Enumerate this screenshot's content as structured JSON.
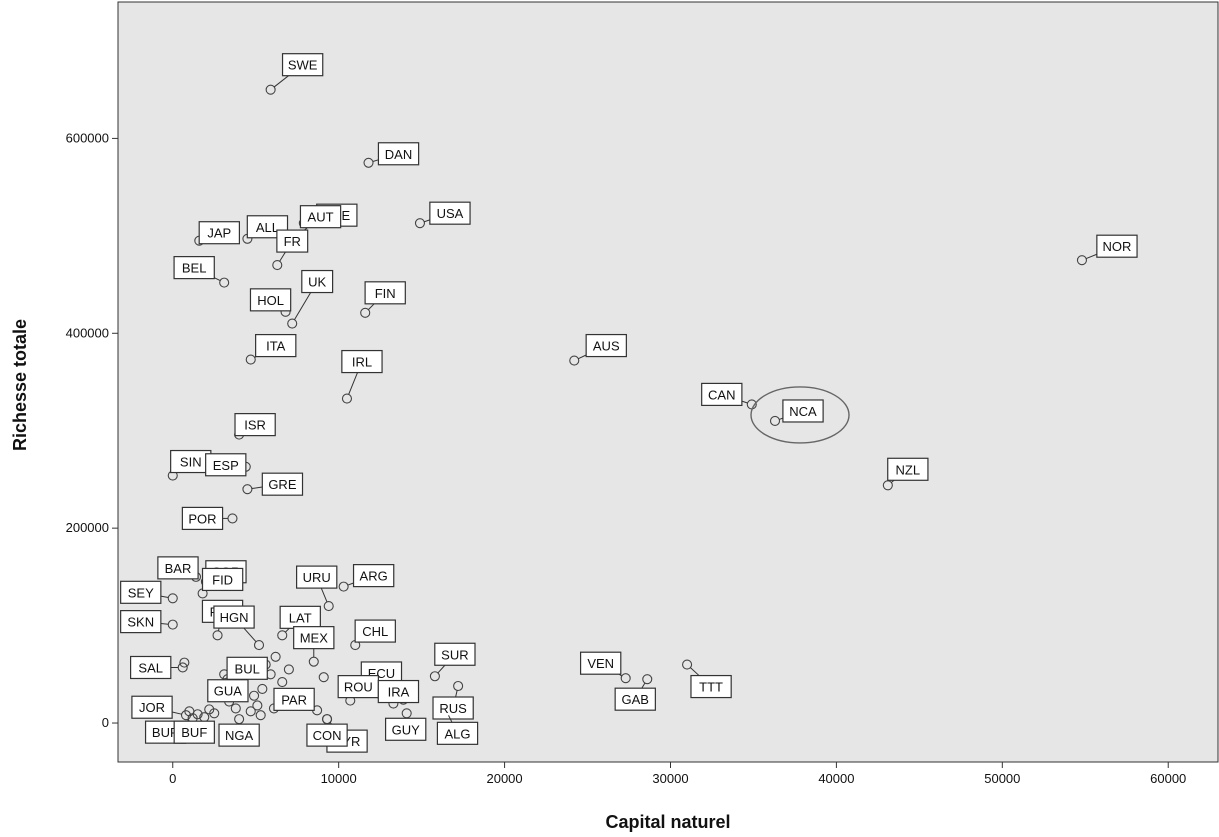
{
  "chart_data": {
    "type": "scatter",
    "xlabel": "Capital naturel",
    "ylabel": "Richesse totale",
    "xlim": [
      -3300,
      63000
    ],
    "ylim": [
      -40000,
      740000
    ],
    "x_ticks": [
      0,
      10000,
      20000,
      30000,
      40000,
      50000,
      60000
    ],
    "y_ticks": [
      0,
      200000,
      400000,
      600000
    ],
    "grid": false,
    "background": "#e6e6e6",
    "highlighted": "NCA",
    "points": [
      {
        "label": "SWE",
        "x": 5900,
        "y": 650000
      },
      {
        "label": "DAN",
        "x": 11800,
        "y": 575000
      },
      {
        "label": "SUE",
        "x": 7900,
        "y": 513000
      },
      {
        "label": "USA",
        "x": 14900,
        "y": 513000
      },
      {
        "label": "ALL",
        "x": 4500,
        "y": 497000
      },
      {
        "label": "JAP",
        "x": 1600,
        "y": 495000
      },
      {
        "label": "AUT",
        "x": 7100,
        "y": 494000
      },
      {
        "label": "NOR",
        "x": 54800,
        "y": 475000
      },
      {
        "label": "FR",
        "x": 6300,
        "y": 470000
      },
      {
        "label": "BEL",
        "x": 3100,
        "y": 452000
      },
      {
        "label": "HOL",
        "x": 6800,
        "y": 422000
      },
      {
        "label": "FIN",
        "x": 11600,
        "y": 421000
      },
      {
        "label": "UK",
        "x": 7200,
        "y": 410000
      },
      {
        "label": "ITA",
        "x": 4700,
        "y": 373000
      },
      {
        "label": "AUS",
        "x": 24200,
        "y": 372000
      },
      {
        "label": "IRL",
        "x": 10500,
        "y": 333000
      },
      {
        "label": "CAN",
        "x": 34900,
        "y": 327000
      },
      {
        "label": "NCA",
        "x": 36300,
        "y": 310000
      },
      {
        "label": "ISR",
        "x": 4000,
        "y": 296000
      },
      {
        "label": "SIN",
        "x": 0,
        "y": 254000
      },
      {
        "label": "NZL",
        "x": 43100,
        "y": 244000
      },
      {
        "label": "ESP",
        "x": 4400,
        "y": 263000
      },
      {
        "label": "GRE",
        "x": 4500,
        "y": 240000
      },
      {
        "label": "POR",
        "x": 3600,
        "y": 210000
      },
      {
        "label": "BAR",
        "x": 1400,
        "y": 150000
      },
      {
        "label": "COR",
        "x": 2000,
        "y": 145000
      },
      {
        "label": "URU",
        "x": 9400,
        "y": 120000
      },
      {
        "label": "ARG",
        "x": 10300,
        "y": 140000
      },
      {
        "label": "FID",
        "x": 1800,
        "y": 133000
      },
      {
        "label": "SEY",
        "x": 0,
        "y": 128000
      },
      {
        "label": "LAT",
        "x": 6600,
        "y": 90000
      },
      {
        "label": "SKN",
        "x": 0,
        "y": 101000
      },
      {
        "label": "PAN",
        "x": 2700,
        "y": 90000
      },
      {
        "label": "HGN",
        "x": 5200,
        "y": 80000
      },
      {
        "label": "MEX",
        "x": 8500,
        "y": 63000
      },
      {
        "label": "CHL",
        "x": 11000,
        "y": 80000
      },
      {
        "label": "SUR",
        "x": 15800,
        "y": 48000
      },
      {
        "label": "SAL",
        "x": 600,
        "y": 57000
      },
      {
        "label": "BUL",
        "x": 3100,
        "y": 50000
      },
      {
        "label": "ECU",
        "x": 13300,
        "y": 37000
      },
      {
        "label": "VEN",
        "x": 27300,
        "y": 46000
      },
      {
        "label": "GAB",
        "x": 28600,
        "y": 45000
      },
      {
        "label": "TTT",
        "x": 31000,
        "y": 60000
      },
      {
        "label": "GUA",
        "x": 2600,
        "y": 28000
      },
      {
        "label": "ROU",
        "x": 10700,
        "y": 23000
      },
      {
        "label": "IRA",
        "x": 13300,
        "y": 20000
      },
      {
        "label": "RUS",
        "x": 17200,
        "y": 38000
      },
      {
        "label": "PAR",
        "x": 8700,
        "y": 13000
      },
      {
        "label": "JOR",
        "x": 800,
        "y": 8000
      },
      {
        "label": "SYR",
        "x": 9300,
        "y": 4000
      },
      {
        "label": "GUY",
        "x": 14100,
        "y": 10000
      },
      {
        "label": "ALG",
        "x": 16500,
        "y": 12000
      },
      {
        "label": "BUR",
        "x": 1200,
        "y": 5000
      },
      {
        "label": "BUF",
        "x": 1900,
        "y": 6000
      },
      {
        "label": "NGA",
        "x": 4000,
        "y": 4000
      },
      {
        "label": "CON",
        "x": 9300,
        "y": 4000
      },
      {
        "label": "",
        "x": 700,
        "y": 62000
      },
      {
        "label": "",
        "x": 3300,
        "y": 45000
      },
      {
        "label": "",
        "x": 3700,
        "y": 38000
      },
      {
        "label": "",
        "x": 4100,
        "y": 33000
      },
      {
        "label": "",
        "x": 4900,
        "y": 28000
      },
      {
        "label": "",
        "x": 5400,
        "y": 35000
      },
      {
        "label": "",
        "x": 5600,
        "y": 60000
      },
      {
        "label": "",
        "x": 5900,
        "y": 50000
      },
      {
        "label": "",
        "x": 6200,
        "y": 68000
      },
      {
        "label": "",
        "x": 6600,
        "y": 42000
      },
      {
        "label": "",
        "x": 7000,
        "y": 55000
      },
      {
        "label": "",
        "x": 5100,
        "y": 18000
      },
      {
        "label": "",
        "x": 4700,
        "y": 12000
      },
      {
        "label": "",
        "x": 3800,
        "y": 15000
      },
      {
        "label": "",
        "x": 3400,
        "y": 22000
      },
      {
        "label": "",
        "x": 2900,
        "y": 30000
      },
      {
        "label": "",
        "x": 2500,
        "y": 10000
      },
      {
        "label": "",
        "x": 2200,
        "y": 14000
      },
      {
        "label": "",
        "x": 1500,
        "y": 9000
      },
      {
        "label": "",
        "x": 1000,
        "y": 12000
      },
      {
        "label": "",
        "x": 5300,
        "y": 8000
      },
      {
        "label": "",
        "x": 6100,
        "y": 15000
      },
      {
        "label": "",
        "x": 9100,
        "y": 47000
      },
      {
        "label": "",
        "x": 12600,
        "y": 28000
      },
      {
        "label": "",
        "x": 13900,
        "y": 24000
      },
      {
        "label": "",
        "x": 4300,
        "y": 47000
      }
    ]
  }
}
